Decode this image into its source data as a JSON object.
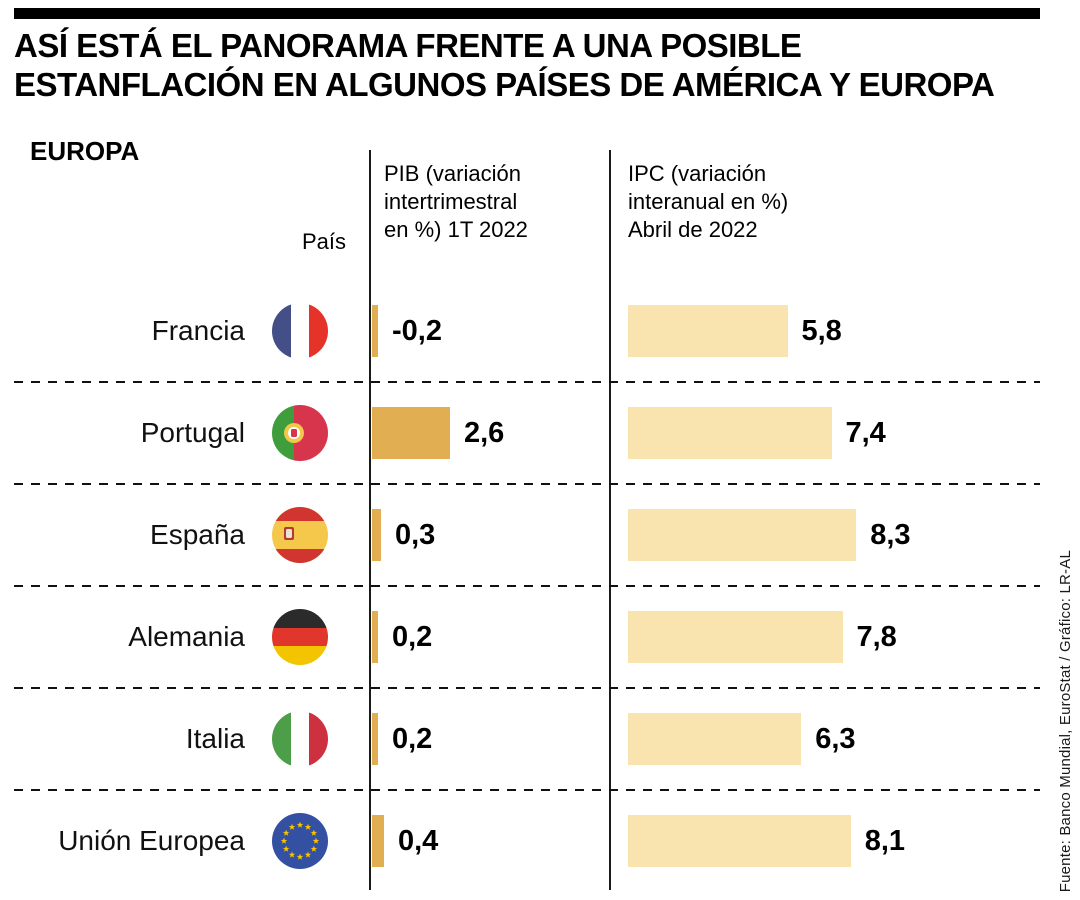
{
  "header": {
    "title_line1": "ASÍ ESTÁ EL PANORAMA FRENTE A UNA POSIBLE",
    "title_line2": "ESTANFLACIÓN EN ALGUNOS PAÍSES DE AMÉRICA Y EUROPA"
  },
  "section": "EUROPA",
  "columns": {
    "country": "País",
    "pib": [
      "PIB (variación",
      "intertrimestral",
      "en %) 1T 2022"
    ],
    "ipc": [
      "IPC (variación",
      "interanual en %)",
      "Abril de 2022"
    ]
  },
  "source": "Fuente: Banco Mundial, EuroStat / Gráfico: LR-AL",
  "colors": {
    "pib_bar": "#e2ae52",
    "ipc_bar": "#f9e3ae",
    "axis": "#1a1a1a"
  },
  "chart_data": {
    "type": "bar",
    "title": "Así está el panorama frente a una posible estanflación en algunos países de América y Europa — Europa",
    "categories": [
      "Francia",
      "Portugal",
      "España",
      "Alemania",
      "Italia",
      "Unión Europea"
    ],
    "flags": [
      "fr",
      "pt",
      "es",
      "de",
      "it",
      "eu"
    ],
    "series": [
      {
        "name": "PIB (variación intertrimestral en %) 1T 2022",
        "values": [
          -0.2,
          2.6,
          0.3,
          0.2,
          0.2,
          0.4
        ],
        "labels": [
          "-0,2",
          "2,6",
          "0,3",
          "0,2",
          "0,2",
          "0,4"
        ]
      },
      {
        "name": "IPC (variación interanual en %) Abril de 2022",
        "values": [
          5.8,
          7.4,
          8.3,
          7.8,
          6.3,
          8.1
        ],
        "labels": [
          "5,8",
          "7,4",
          "8,3",
          "7,8",
          "6,3",
          "8,1"
        ]
      }
    ],
    "legend_position": "column headers",
    "grid": "dashed row separators",
    "orientation": "horizontal"
  }
}
